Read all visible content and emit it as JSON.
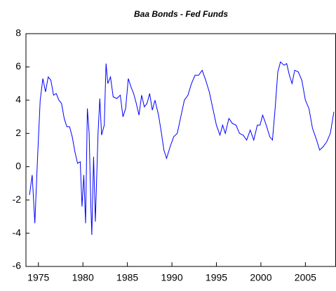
{
  "chart_data": {
    "type": "line",
    "title": "Baa Bonds - Fed Funds",
    "x": [
      1974.0,
      1974.3,
      1974.6,
      1974.9,
      1975.2,
      1975.5,
      1975.8,
      1976.1,
      1976.4,
      1976.7,
      1977.0,
      1977.3,
      1977.6,
      1977.9,
      1978.2,
      1978.5,
      1978.8,
      1979.1,
      1979.4,
      1979.7,
      1979.9,
      1980.1,
      1980.3,
      1980.5,
      1980.7,
      1980.9,
      1981.0,
      1981.2,
      1981.4,
      1981.7,
      1981.9,
      1982.1,
      1982.4,
      1982.6,
      1982.8,
      1983.1,
      1983.4,
      1983.8,
      1984.2,
      1984.5,
      1984.8,
      1985.1,
      1985.4,
      1985.7,
      1986.0,
      1986.3,
      1986.6,
      1986.9,
      1987.2,
      1987.5,
      1987.8,
      1988.1,
      1988.5,
      1988.8,
      1989.1,
      1989.4,
      1989.8,
      1990.2,
      1990.6,
      1991.0,
      1991.4,
      1991.8,
      1992.2,
      1992.6,
      1993.0,
      1993.4,
      1993.8,
      1994.2,
      1994.6,
      1995.0,
      1995.4,
      1995.7,
      1996.0,
      1996.4,
      1996.8,
      1997.2,
      1997.6,
      1998.0,
      1998.4,
      1998.8,
      1999.2,
      1999.6,
      1999.9,
      2000.2,
      2000.6,
      2001.0,
      2001.3,
      2001.6,
      2001.9,
      2002.2,
      2002.6,
      2002.9,
      2003.2,
      2003.5,
      2003.8,
      2004.2,
      2004.6,
      2005.0,
      2005.4,
      2005.8,
      2006.2,
      2006.6,
      2007.0,
      2007.4,
      2007.8,
      2008.2
    ],
    "series": [
      {
        "name": "Baa Bonds - Fed Funds",
        "color": "#0000ff",
        "values": [
          -1.7,
          -0.5,
          -3.4,
          0.5,
          4.0,
          5.3,
          4.5,
          5.4,
          5.2,
          4.3,
          4.4,
          4.0,
          3.8,
          2.9,
          2.4,
          2.4,
          1.8,
          0.9,
          0.2,
          0.3,
          -2.4,
          -0.5,
          -3.4,
          3.5,
          2.0,
          -2.5,
          -4.1,
          0.6,
          -3.3,
          2.0,
          4.1,
          1.9,
          2.5,
          6.2,
          5.0,
          5.4,
          4.2,
          4.1,
          4.3,
          3.0,
          3.5,
          5.3,
          4.8,
          4.4,
          3.8,
          3.1,
          4.3,
          3.6,
          3.8,
          4.4,
          3.4,
          4.0,
          3.1,
          2.1,
          1.0,
          0.5,
          1.2,
          1.8,
          2.0,
          3.0,
          4.0,
          4.3,
          5.0,
          5.5,
          5.5,
          5.8,
          5.2,
          4.5,
          3.5,
          2.5,
          1.9,
          2.5,
          2.0,
          2.9,
          2.6,
          2.5,
          2.0,
          1.9,
          1.6,
          2.2,
          1.6,
          2.5,
          2.5,
          3.1,
          2.5,
          1.8,
          1.6,
          3.5,
          5.7,
          6.3,
          6.1,
          6.2,
          5.5,
          5.0,
          5.8,
          5.7,
          5.2,
          4.0,
          3.5,
          2.3,
          1.7,
          1.0,
          1.2,
          1.5,
          2.0,
          3.3
        ]
      }
    ],
    "xlim": [
      1973.6,
      2008.4
    ],
    "xticks": [
      1975,
      1980,
      1985,
      1990,
      1995,
      2000,
      2005
    ],
    "ylim": [
      -6,
      8
    ],
    "yticks": [
      -6,
      -4,
      -2,
      0,
      2,
      4,
      6,
      8
    ]
  }
}
